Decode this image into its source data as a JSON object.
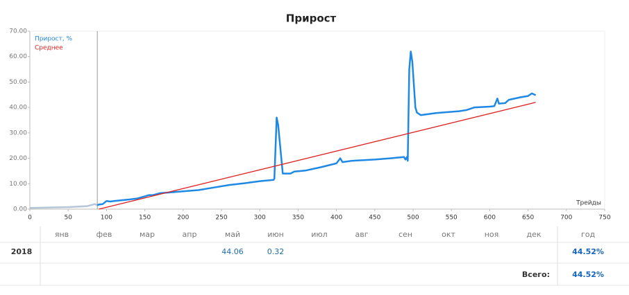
{
  "chart_data": {
    "type": "line",
    "title": "Прирост",
    "xlabel": "Трейды",
    "xlim": [
      0,
      750
    ],
    "xticks": [
      0,
      50,
      100,
      150,
      200,
      250,
      300,
      350,
      400,
      450,
      500,
      550,
      600,
      650,
      700,
      750
    ],
    "ylim": [
      0,
      70
    ],
    "yticks": [
      {
        "value": 0,
        "label": "0.00"
      },
      {
        "value": 10,
        "label": "10.00"
      },
      {
        "value": 20,
        "label": "20.00"
      },
      {
        "value": 30,
        "label": "30.00"
      },
      {
        "value": 40,
        "label": "40.00"
      },
      {
        "value": 50,
        "label": "50.00"
      },
      {
        "value": 60,
        "label": "60.00"
      },
      {
        "value": 70,
        "label": "70.00"
      }
    ],
    "vline": 88,
    "color_before": "#b4c6d8",
    "legend": "top-left",
    "series": [
      {
        "name": "Прирост, %",
        "color": "#1e88e5",
        "x": [
          0,
          50,
          75,
          85,
          88,
          90,
          95,
          100,
          105,
          110,
          120,
          130,
          140,
          150,
          155,
          160,
          170,
          180,
          200,
          220,
          240,
          260,
          280,
          300,
          318,
          319,
          322,
          324,
          330,
          340,
          345,
          360,
          380,
          400,
          405,
          408,
          420,
          450,
          470,
          488,
          490,
          492,
          493,
          495,
          497,
          499,
          503,
          505,
          510,
          530,
          560,
          570,
          580,
          600,
          606,
          610,
          612,
          620,
          625,
          640,
          650,
          655,
          660
        ],
        "values": [
          0.5,
          0.8,
          1.2,
          2.0,
          1.5,
          1.8,
          2.0,
          3.2,
          3.0,
          3.2,
          3.5,
          3.8,
          4.2,
          5.0,
          5.5,
          5.5,
          6.3,
          6.5,
          7.0,
          7.5,
          8.5,
          9.5,
          10.2,
          11.0,
          11.5,
          12.0,
          36.0,
          33.0,
          14.0,
          14.0,
          14.8,
          15.2,
          16.5,
          18.0,
          20.0,
          18.5,
          19.0,
          19.5,
          20.0,
          20.5,
          19.5,
          20.5,
          19.0,
          55.0,
          62.0,
          58.0,
          40.0,
          38.0,
          37.0,
          37.8,
          38.5,
          39.0,
          40.0,
          40.3,
          40.5,
          43.5,
          41.5,
          41.7,
          43.0,
          44.0,
          44.5,
          45.5,
          44.8
        ]
      },
      {
        "name": "Среднее",
        "color": "#e02020",
        "x": [
          90,
          660
        ],
        "values": [
          0,
          42
        ]
      }
    ]
  },
  "table": {
    "columns": [
      "янв",
      "фев",
      "мар",
      "апр",
      "май",
      "июн",
      "июл",
      "авг",
      "сен",
      "окт",
      "ноя",
      "дек",
      "год"
    ],
    "rows": [
      [
        "2018",
        null,
        null,
        null,
        null,
        "44.06",
        "0.32",
        null,
        null,
        null,
        null,
        null,
        null,
        "44.52%"
      ]
    ],
    "total_label": "Всего:",
    "total": "44.52%"
  }
}
